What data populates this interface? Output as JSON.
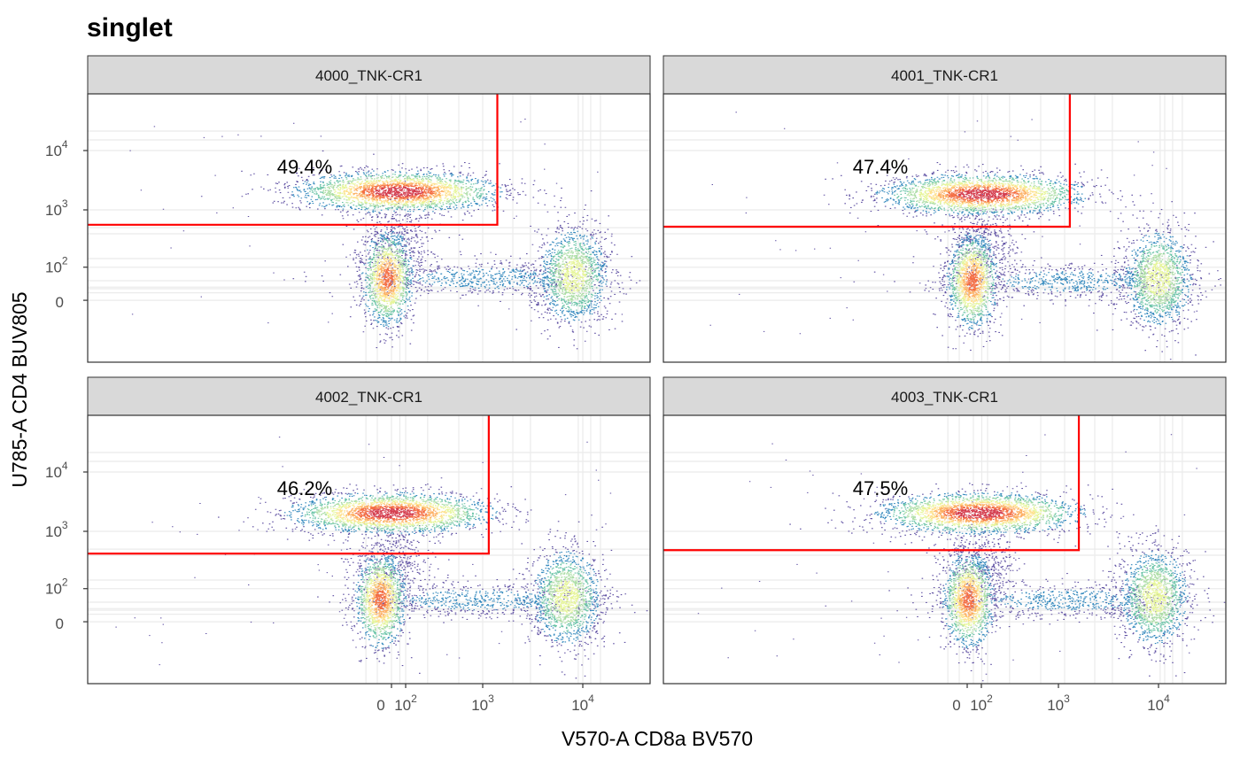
{
  "chart_data": {
    "type": "scatter",
    "subtype": "flow-cytometry-density-facets",
    "title": "singlet",
    "xlabel": "V570-A CD8a BV570",
    "ylabel": "U785-A CD4 BUV805",
    "x_scale": "biexponential",
    "y_scale": "biexponential",
    "x_ticks": [
      {
        "value": 0,
        "label": "0"
      },
      {
        "value": 100,
        "base": "10",
        "exp": "2"
      },
      {
        "value": 1000,
        "base": "10",
        "exp": "3"
      },
      {
        "value": 10000,
        "base": "10",
        "exp": "4"
      }
    ],
    "y_ticks": [
      {
        "value": 0,
        "label": "0"
      },
      {
        "value": 100,
        "base": "10",
        "exp": "2"
      },
      {
        "value": 1000,
        "base": "10",
        "exp": "3"
      },
      {
        "value": 10000,
        "base": "10",
        "exp": "4"
      }
    ],
    "gate_color": "#ff0000",
    "density_palette": [
      "#5e4fa2",
      "#3288bd",
      "#66c2a5",
      "#abdda4",
      "#e6f598",
      "#fee08b",
      "#fdae61",
      "#f46d43",
      "#d53e4f"
    ],
    "panels": [
      {
        "name": "4000_TNK-CR1",
        "gate_percent": "49.4%",
        "gate": {
          "x_max": 1400,
          "y_min": 560
        }
      },
      {
        "name": "4001_TNK-CR1",
        "gate_percent": "47.4%",
        "gate": {
          "x_max": 1300,
          "y_min": 520
        }
      },
      {
        "name": "4002_TNK-CR1",
        "gate_percent": "46.2%",
        "gate": {
          "x_max": 1150,
          "y_min": 420
        }
      },
      {
        "name": "4003_TNK-CR1",
        "gate_percent": "47.5%",
        "gate": {
          "x_max": 1600,
          "y_min": 480
        }
      }
    ]
  }
}
